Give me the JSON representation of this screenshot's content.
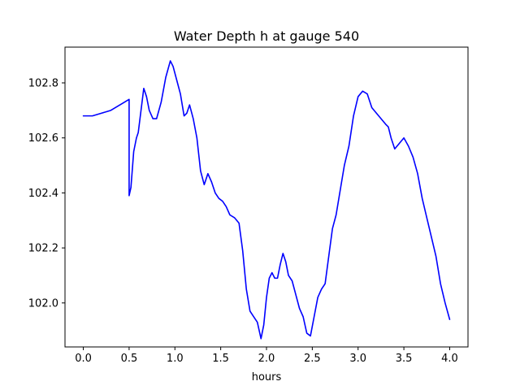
{
  "chart_data": {
    "type": "line",
    "title": "Water Depth h at gauge 540",
    "xlabel": "hours",
    "ylabel": "",
    "xlim": [
      -0.2,
      4.2
    ],
    "ylim": [
      101.84,
      102.93
    ],
    "xticks": [
      0.0,
      0.5,
      1.0,
      1.5,
      2.0,
      2.5,
      3.0,
      3.5,
      4.0
    ],
    "xtick_labels": [
      "0.0",
      "0.5",
      "1.0",
      "1.5",
      "2.0",
      "2.5",
      "3.0",
      "3.5",
      "4.0"
    ],
    "yticks": [
      102.0,
      102.2,
      102.4,
      102.6,
      102.8
    ],
    "ytick_labels": [
      "102.0",
      "102.2",
      "102.4",
      "102.6",
      "102.8"
    ],
    "grid": false,
    "series": [
      {
        "color": "#0000ff",
        "x": [
          0.0,
          0.1,
          0.2,
          0.3,
          0.4,
          0.45,
          0.5,
          0.5,
          0.52,
          0.55,
          0.58,
          0.6,
          0.63,
          0.66,
          0.69,
          0.72,
          0.76,
          0.8,
          0.85,
          0.9,
          0.95,
          0.98,
          1.02,
          1.06,
          1.1,
          1.13,
          1.16,
          1.2,
          1.24,
          1.28,
          1.32,
          1.36,
          1.4,
          1.44,
          1.48,
          1.52,
          1.56,
          1.6,
          1.65,
          1.7,
          1.74,
          1.78,
          1.82,
          1.86,
          1.9,
          1.94,
          1.97,
          2.0,
          2.03,
          2.06,
          2.09,
          2.12,
          2.15,
          2.18,
          2.21,
          2.24,
          2.28,
          2.32,
          2.36,
          2.4,
          2.44,
          2.48,
          2.52,
          2.56,
          2.6,
          2.64,
          2.68,
          2.72,
          2.76,
          2.8,
          2.85,
          2.9,
          2.95,
          3.0,
          3.05,
          3.1,
          3.15,
          3.2,
          3.25,
          3.3,
          3.33,
          3.36,
          3.4,
          3.45,
          3.5,
          3.55,
          3.6,
          3.65,
          3.7,
          3.75,
          3.8,
          3.85,
          3.9,
          3.95,
          4.0
        ],
        "y": [
          102.68,
          102.68,
          102.69,
          102.7,
          102.72,
          102.73,
          102.74,
          102.39,
          102.42,
          102.55,
          102.6,
          102.62,
          102.7,
          102.78,
          102.75,
          102.7,
          102.67,
          102.67,
          102.73,
          102.82,
          102.88,
          102.86,
          102.81,
          102.76,
          102.68,
          102.69,
          102.72,
          102.67,
          102.6,
          102.48,
          102.43,
          102.47,
          102.44,
          102.4,
          102.38,
          102.37,
          102.35,
          102.32,
          102.31,
          102.29,
          102.19,
          102.05,
          101.97,
          101.95,
          101.93,
          101.87,
          101.92,
          102.02,
          102.09,
          102.11,
          102.09,
          102.09,
          102.14,
          102.18,
          102.15,
          102.1,
          102.08,
          102.03,
          101.98,
          101.95,
          101.89,
          101.88,
          101.95,
          102.02,
          102.05,
          102.07,
          102.17,
          102.27,
          102.32,
          102.4,
          102.5,
          102.57,
          102.68,
          102.75,
          102.77,
          102.76,
          102.71,
          102.69,
          102.67,
          102.65,
          102.64,
          102.6,
          102.56,
          102.58,
          102.6,
          102.57,
          102.53,
          102.47,
          102.38,
          102.31,
          102.24,
          102.17,
          102.07,
          102.0,
          101.94
        ]
      }
    ]
  }
}
